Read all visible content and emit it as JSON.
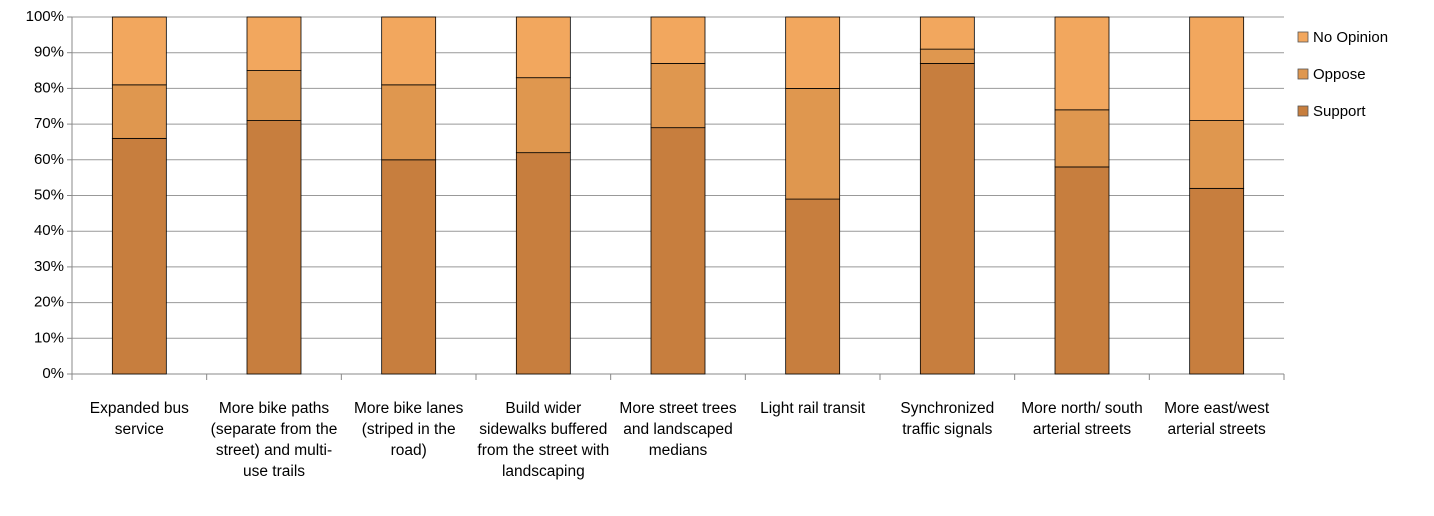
{
  "chart_data": {
    "type": "stacked_bar",
    "categories": [
      "Expanded bus service",
      "More bike paths (separate from the street) and multi-use trails",
      "More bike lanes (striped in the road)",
      "Build wider sidewalks buffered from the street with landscaping",
      "More street trees and landscaped medians",
      "Light rail transit",
      "Synchronized traffic signals",
      "More north/ south arterial streets",
      "More east/west arterial streets"
    ],
    "series": [
      {
        "name": "Support",
        "color": "#c77e3e",
        "values": [
          66,
          71,
          60,
          62,
          69,
          49,
          87,
          58,
          52
        ]
      },
      {
        "name": "Oppose",
        "color": "#df974f",
        "values": [
          15,
          14,
          21,
          21,
          18,
          31,
          4,
          16,
          19
        ]
      },
      {
        "name": "No Opinion",
        "color": "#f2a75e",
        "values": [
          19,
          15,
          19,
          17,
          13,
          20,
          9,
          26,
          29
        ]
      }
    ],
    "ylim": [
      0,
      100
    ],
    "yticks": [
      {
        "value": 0,
        "label": "0%"
      },
      {
        "value": 10,
        "label": "10%"
      },
      {
        "value": 20,
        "label": "20%"
      },
      {
        "value": 30,
        "label": "30%"
      },
      {
        "value": 40,
        "label": "40%"
      },
      {
        "value": 50,
        "label": "50%"
      },
      {
        "value": 60,
        "label": "60%"
      },
      {
        "value": 70,
        "label": "70%"
      },
      {
        "value": 80,
        "label": "80%"
      },
      {
        "value": 90,
        "label": "90%"
      },
      {
        "value": 100,
        "label": "100%"
      }
    ],
    "grid": true,
    "legend": "right"
  }
}
